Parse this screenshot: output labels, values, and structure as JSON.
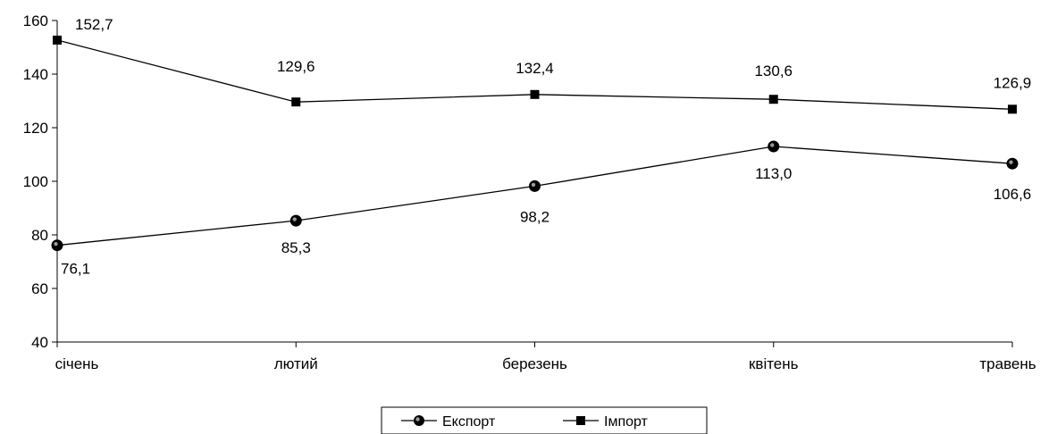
{
  "chart_data": {
    "type": "line",
    "categories": [
      "січень",
      "лютий",
      "березень",
      "квітень",
      "травень"
    ],
    "series": [
      {
        "name": "Експорт",
        "marker": "circle",
        "values": [
          76.1,
          85.3,
          98.2,
          113.0,
          106.6
        ],
        "labels": [
          "76,1",
          "85,3",
          "98,2",
          "113,0",
          "106,6"
        ]
      },
      {
        "name": "Імпорт",
        "marker": "square",
        "values": [
          152.7,
          129.6,
          132.4,
          130.6,
          126.9
        ],
        "labels": [
          "152,7",
          "129,6",
          "132,4",
          "130,6",
          "126,9"
        ]
      }
    ],
    "ylim": [
      40,
      160
    ],
    "yticks": [
      40,
      60,
      80,
      100,
      120,
      140,
      160
    ],
    "grid": false,
    "legend_position": "bottom-center",
    "colors": {
      "line": "#000000",
      "marker": "#000000",
      "background": "#ffffff"
    }
  }
}
